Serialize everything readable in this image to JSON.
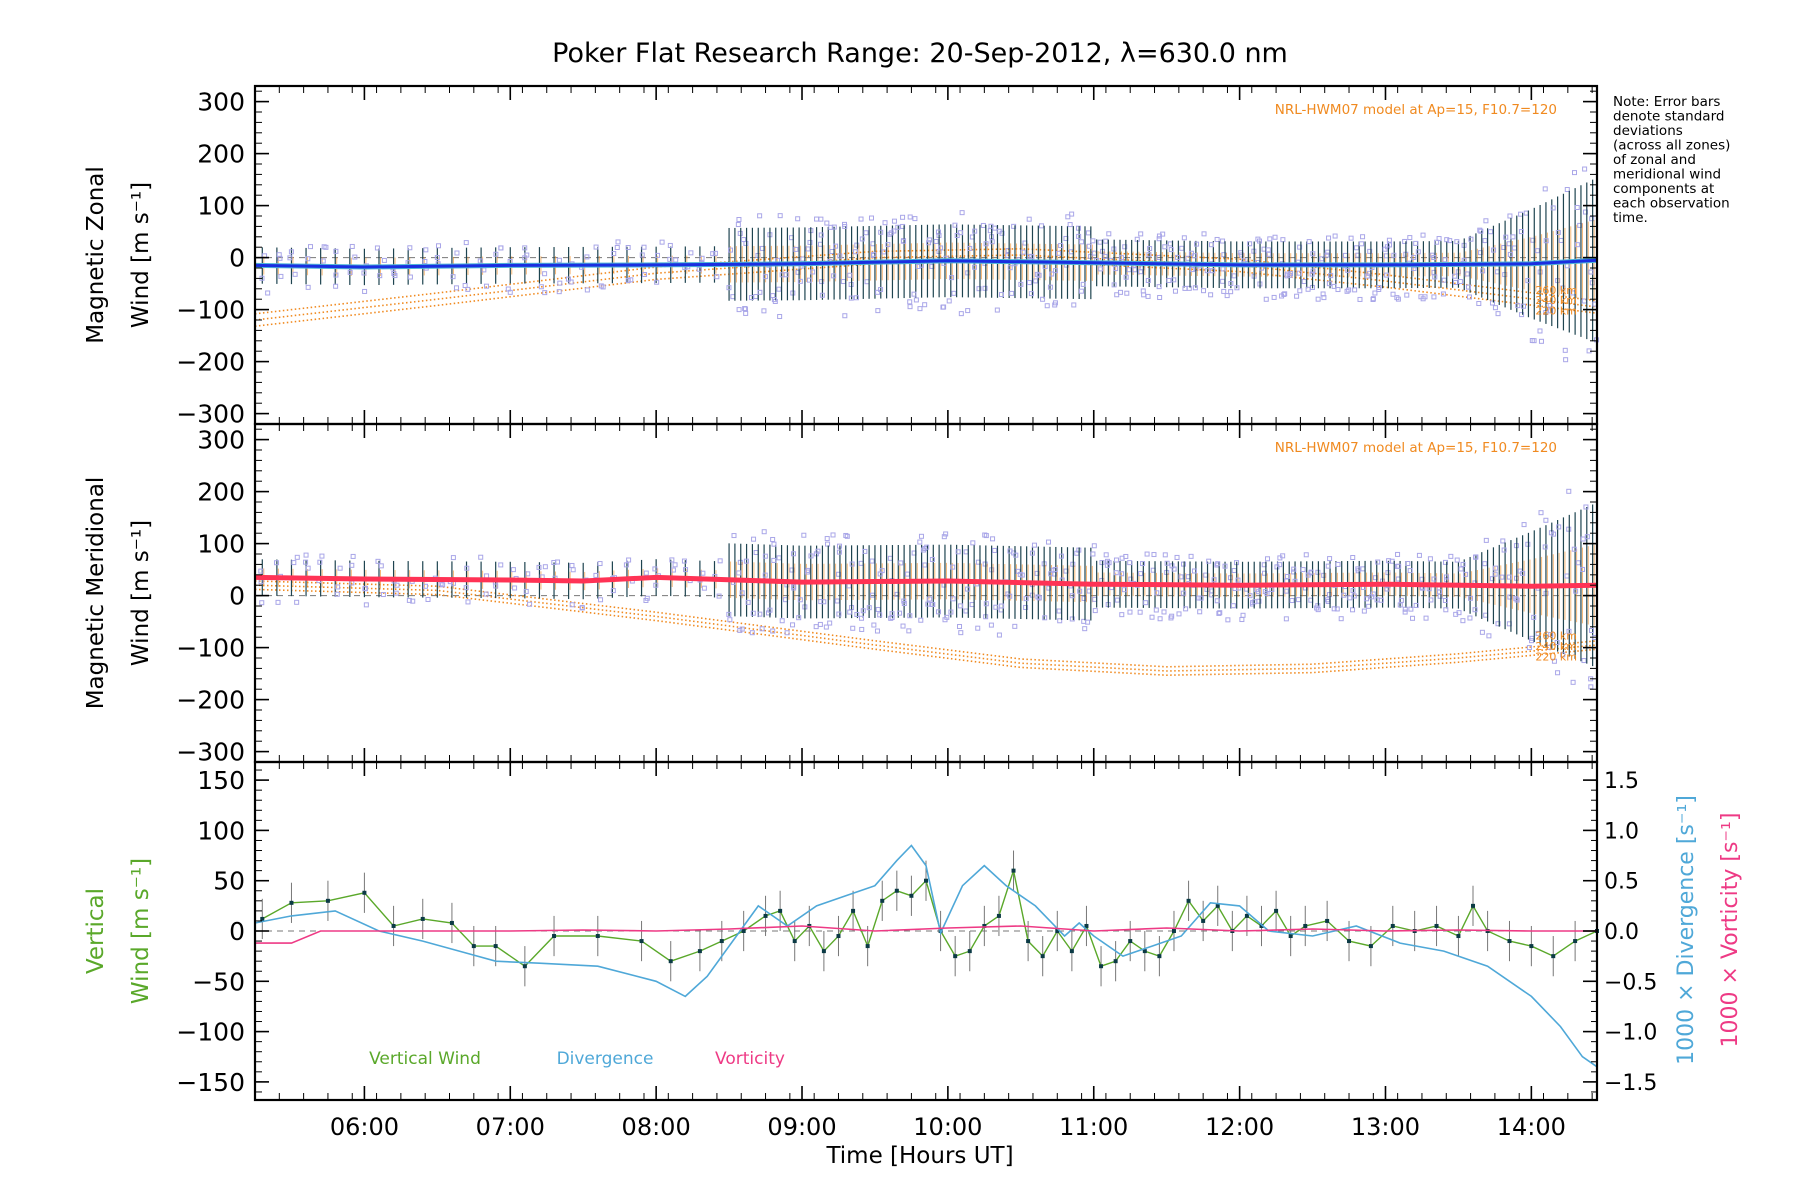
{
  "title": "Poker Flat Research Range: 20-Sep-2012, λ=630.0 nm",
  "note": [
    "Note: Error bars",
    "denote standard",
    "deviations",
    "(across all zones)",
    "of zonal and",
    "meridional wind",
    "components at",
    "each observation",
    "time."
  ],
  "xlabel": "Time [Hours UT]",
  "xticks": [
    "06:00",
    "07:00",
    "08:00",
    "09:00",
    "10:00",
    "11:00",
    "12:00",
    "13:00",
    "14:00"
  ],
  "colors": {
    "zonal_line": "#1a2ee0",
    "zonal_light": "#4fb6d8",
    "meridional_line": "#ff3355",
    "model": "#f08a20",
    "samples": "#a9a6e8",
    "vertical": "#5aa82a",
    "divergence": "#4fa8d8",
    "vorticity": "#ee3a85",
    "points": "#0b3a45"
  },
  "chart_data": [
    {
      "type": "line",
      "name": "zonal",
      "ylabel": [
        "Magnetic Zonal",
        "Wind [m s⁻¹]"
      ],
      "ylim": [
        -320,
        330
      ],
      "yticks": [
        "300",
        "200",
        "100",
        "0",
        "−100",
        "−200",
        "−300"
      ],
      "model_label": "NRL-HWM07 model at Ap=15, F10.7=120",
      "model_heights": [
        "260 km",
        "240 km",
        "220 km"
      ],
      "x_hours": [
        5.25,
        6.0,
        7.0,
        8.0,
        9.0,
        10.0,
        11.0,
        12.0,
        13.0,
        14.0,
        14.45
      ],
      "y": [
        -15,
        -18,
        -15,
        -14,
        -12,
        -6,
        -10,
        -14,
        -14,
        -12,
        -5
      ]
    },
    {
      "type": "line",
      "name": "meridional",
      "ylabel": [
        "Magnetic Meridional",
        "Wind [m s⁻¹]"
      ],
      "ylim": [
        -320,
        330
      ],
      "yticks": [
        "300",
        "200",
        "100",
        "0",
        "−100",
        "−200",
        "−300"
      ],
      "model_label": "NRL-HWM07 model at Ap=15, F10.7=120",
      "model_heights": [
        "260 km",
        "240 km",
        "220 km"
      ],
      "x_hours": [
        5.25,
        6.0,
        7.0,
        7.5,
        8.0,
        9.0,
        10.0,
        11.0,
        12.0,
        13.0,
        14.0,
        14.45
      ],
      "y": [
        35,
        32,
        30,
        28,
        35,
        26,
        28,
        22,
        20,
        22,
        18,
        20
      ]
    },
    {
      "type": "line",
      "name": "vertical",
      "ylabel": [
        "Vertical",
        "Wind [m s⁻¹]"
      ],
      "y2label_divergence": "1000 × Divergence [s⁻¹]",
      "y2label_vorticity": "1000 × Vorticity [s⁻¹]",
      "ylim": [
        -168,
        168
      ],
      "yticks": [
        "150",
        "100",
        "50",
        "0",
        "−50",
        "−100",
        "−150"
      ],
      "y2ticks": [
        "1.5",
        "1.0",
        "0.5",
        "0.0",
        "−0.5",
        "−1.0",
        "−1.5"
      ],
      "legend": [
        "Vertical Wind",
        "Divergence",
        "Vorticity"
      ],
      "vertical_x": [
        5.3,
        5.5,
        5.75,
        6.0,
        6.2,
        6.4,
        6.6,
        6.75,
        6.9,
        7.1,
        7.3,
        7.6,
        7.9,
        8.1,
        8.3,
        8.45,
        8.6,
        8.75,
        8.85,
        8.95,
        9.05,
        9.15,
        9.25,
        9.35,
        9.45,
        9.55,
        9.65,
        9.75,
        9.85,
        9.95,
        10.05,
        10.15,
        10.25,
        10.35,
        10.45,
        10.55,
        10.65,
        10.75,
        10.85,
        10.95,
        11.05,
        11.15,
        11.25,
        11.35,
        11.45,
        11.55,
        11.65,
        11.75,
        11.85,
        11.95,
        12.05,
        12.15,
        12.25,
        12.35,
        12.45,
        12.6,
        12.75,
        12.9,
        13.05,
        13.2,
        13.35,
        13.5,
        13.6,
        13.7,
        13.85,
        14.0,
        14.15,
        14.3,
        14.45
      ],
      "vertical_y": [
        12,
        28,
        30,
        38,
        5,
        12,
        8,
        -15,
        -15,
        -35,
        -5,
        -5,
        -10,
        -30,
        -20,
        -10,
        0,
        15,
        20,
        -10,
        5,
        -20,
        -5,
        20,
        -15,
        30,
        40,
        35,
        50,
        0,
        -25,
        -20,
        5,
        15,
        60,
        -10,
        -25,
        0,
        -20,
        5,
        -35,
        -30,
        -10,
        -20,
        -25,
        0,
        30,
        10,
        25,
        0,
        15,
        5,
        20,
        -5,
        5,
        10,
        -10,
        -15,
        5,
        0,
        5,
        -5,
        25,
        0,
        -10,
        -15,
        -25,
        -10,
        0
      ],
      "divergence_x": [
        5.25,
        5.5,
        5.8,
        6.1,
        6.4,
        6.7,
        6.9,
        7.2,
        7.6,
        8.0,
        8.2,
        8.35,
        8.5,
        8.7,
        8.9,
        9.1,
        9.3,
        9.5,
        9.65,
        9.75,
        9.85,
        9.95,
        10.1,
        10.25,
        10.4,
        10.6,
        10.8,
        10.9,
        11.0,
        11.2,
        11.4,
        11.6,
        11.8,
        12.0,
        12.2,
        12.5,
        12.8,
        13.1,
        13.4,
        13.7,
        14.0,
        14.2,
        14.35,
        14.45
      ],
      "divergence_y": [
        0.08,
        0.15,
        0.2,
        0.0,
        -0.1,
        -0.22,
        -0.3,
        -0.32,
        -0.35,
        -0.5,
        -0.65,
        -0.45,
        -0.15,
        0.25,
        0.05,
        0.25,
        0.35,
        0.45,
        0.7,
        0.85,
        0.65,
        -0.02,
        0.45,
        0.65,
        0.45,
        0.25,
        -0.05,
        0.08,
        -0.05,
        -0.25,
        -0.15,
        -0.05,
        0.28,
        0.25,
        0.0,
        -0.05,
        0.05,
        -0.12,
        -0.2,
        -0.35,
        -0.65,
        -0.95,
        -1.25,
        -1.35
      ],
      "vorticity_x": [
        5.25,
        5.5,
        5.7,
        6.0,
        6.5,
        7.0,
        7.5,
        8.0,
        8.5,
        9.0,
        9.5,
        10.0,
        10.5,
        11.0,
        11.5,
        12.0,
        12.5,
        13.0,
        13.5,
        14.0,
        14.45
      ],
      "vorticity_y": [
        -0.12,
        -0.12,
        0.0,
        0.0,
        0.0,
        0.0,
        0.01,
        0.0,
        0.02,
        0.05,
        0.0,
        0.03,
        0.05,
        0.0,
        0.03,
        0.0,
        0.02,
        0.0,
        0.01,
        0.0,
        0.0
      ]
    }
  ]
}
